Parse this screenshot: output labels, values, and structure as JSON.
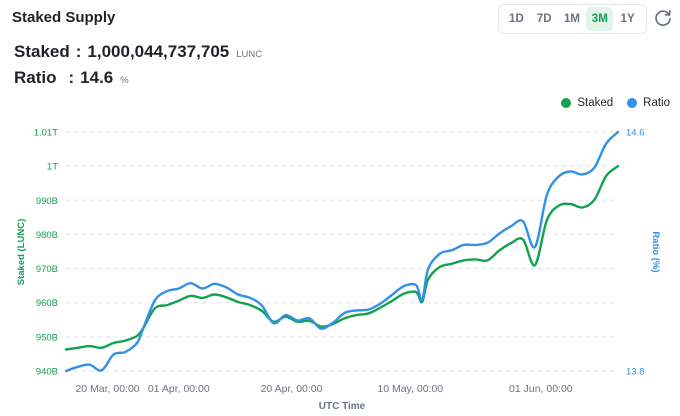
{
  "header": {
    "title": "Staked Supply",
    "ranges": [
      "1D",
      "7D",
      "1M",
      "3M",
      "1Y"
    ],
    "active_range": "3M"
  },
  "stats": {
    "staked_label": "Staked",
    "staked_value": "1,000,044,737,705",
    "staked_unit": "LUNC",
    "ratio_label": "Ratio",
    "ratio_value": "14.6",
    "ratio_unit": "%"
  },
  "colors": {
    "staked": "#12a150",
    "ratio": "#3290e8",
    "grid": "#dfe3e8",
    "active_bg": "#e3f4ea"
  },
  "chart_data": {
    "type": "line",
    "xlabel": "UTC Time",
    "ylabel_left": "Staked (LUNC)",
    "ylabel_right": "Ratio (%)",
    "legend": [
      "Staked",
      "Ratio"
    ],
    "legend_position": "top-right",
    "grid": "horizontal-dashed",
    "x_ticks": [
      "20 Mar, 00:00",
      "01 Apr, 00:00",
      "20 Apr, 00:00",
      "10 May, 00:00",
      "01 Jun, 00:00"
    ],
    "x_tick_dates": [
      "2023-03-20",
      "2023-04-01",
      "2023-04-20",
      "2023-05-10",
      "2023-06-01"
    ],
    "y_left_ticks": [
      "940B",
      "950B",
      "960B",
      "970B",
      "980B",
      "990B",
      "1T",
      "1.01T"
    ],
    "y_left_tick_values": [
      940,
      950,
      960,
      970,
      980,
      990,
      1000,
      1010
    ],
    "y_left_range": [
      940,
      1010
    ],
    "y_left_unit": "billion LUNC",
    "y_right_ticks": [
      "13.8",
      "14.6"
    ],
    "y_right_range": [
      13.8,
      14.6
    ],
    "series": [
      {
        "name": "Staked",
        "axis": "left",
        "color": "#12a150",
        "points": [
          [
            "2023-03-13",
            946.3
          ],
          [
            "2023-03-15",
            946.8
          ],
          [
            "2023-03-17",
            947.3
          ],
          [
            "2023-03-19",
            946.8
          ],
          [
            "2023-03-21",
            948.2
          ],
          [
            "2023-03-23",
            948.9
          ],
          [
            "2023-03-25",
            950.3
          ],
          [
            "2023-03-26",
            952.5
          ],
          [
            "2023-03-28",
            958.4
          ],
          [
            "2023-03-30",
            959.3
          ],
          [
            "2023-04-01",
            960.6
          ],
          [
            "2023-04-03",
            962.0
          ],
          [
            "2023-04-05",
            961.4
          ],
          [
            "2023-04-07",
            962.4
          ],
          [
            "2023-04-09",
            961.6
          ],
          [
            "2023-04-11",
            960.2
          ],
          [
            "2023-04-13",
            959.3
          ],
          [
            "2023-04-15",
            957.6
          ],
          [
            "2023-04-17",
            954.4
          ],
          [
            "2023-04-19",
            955.9
          ],
          [
            "2023-04-21",
            954.4
          ],
          [
            "2023-04-23",
            954.7
          ],
          [
            "2023-04-25",
            953.0
          ],
          [
            "2023-04-27",
            953.8
          ],
          [
            "2023-04-29",
            955.5
          ],
          [
            "2023-05-01",
            956.4
          ],
          [
            "2023-05-03",
            956.9
          ],
          [
            "2023-05-05",
            958.6
          ],
          [
            "2023-05-07",
            960.6
          ],
          [
            "2023-05-09",
            962.7
          ],
          [
            "2023-05-11",
            963.1
          ],
          [
            "2023-05-12",
            960.2
          ],
          [
            "2023-05-13",
            966.8
          ],
          [
            "2023-05-15",
            970.5
          ],
          [
            "2023-05-17",
            971.4
          ],
          [
            "2023-05-19",
            972.4
          ],
          [
            "2023-05-21",
            972.7
          ],
          [
            "2023-05-23",
            972.4
          ],
          [
            "2023-05-25",
            975.3
          ],
          [
            "2023-05-27",
            977.5
          ],
          [
            "2023-05-29",
            978.5
          ],
          [
            "2023-05-31",
            971.0
          ],
          [
            "2023-06-02",
            984.1
          ],
          [
            "2023-06-04",
            988.4
          ],
          [
            "2023-06-06",
            988.9
          ],
          [
            "2023-06-08",
            987.9
          ],
          [
            "2023-06-10",
            990.1
          ],
          [
            "2023-06-12",
            997.1
          ],
          [
            "2023-06-14",
            1000.0
          ]
        ]
      },
      {
        "name": "Ratio",
        "axis": "right",
        "color": "#3290e8",
        "points": [
          [
            "2023-03-13",
            13.8
          ],
          [
            "2023-03-15",
            13.814
          ],
          [
            "2023-03-17",
            13.821
          ],
          [
            "2023-03-19",
            13.802
          ],
          [
            "2023-03-21",
            13.855
          ],
          [
            "2023-03-23",
            13.864
          ],
          [
            "2023-03-25",
            13.895
          ],
          [
            "2023-03-26",
            13.942
          ],
          [
            "2023-03-28",
            14.037
          ],
          [
            "2023-03-30",
            14.067
          ],
          [
            "2023-04-01",
            14.076
          ],
          [
            "2023-04-03",
            14.094
          ],
          [
            "2023-04-05",
            14.076
          ],
          [
            "2023-04-07",
            14.092
          ],
          [
            "2023-04-09",
            14.08
          ],
          [
            "2023-04-11",
            14.056
          ],
          [
            "2023-04-13",
            14.045
          ],
          [
            "2023-04-15",
            14.019
          ],
          [
            "2023-04-17",
            13.96
          ],
          [
            "2023-04-19",
            13.987
          ],
          [
            "2023-04-21",
            13.969
          ],
          [
            "2023-04-23",
            13.976
          ],
          [
            "2023-04-25",
            13.942
          ],
          [
            "2023-04-27",
            13.962
          ],
          [
            "2023-04-29",
            13.995
          ],
          [
            "2023-05-01",
            14.003
          ],
          [
            "2023-05-03",
            14.006
          ],
          [
            "2023-05-05",
            14.026
          ],
          [
            "2023-05-07",
            14.056
          ],
          [
            "2023-05-09",
            14.085
          ],
          [
            "2023-05-11",
            14.087
          ],
          [
            "2023-05-12",
            14.037
          ],
          [
            "2023-05-13",
            14.141
          ],
          [
            "2023-05-15",
            14.193
          ],
          [
            "2023-05-17",
            14.204
          ],
          [
            "2023-05-19",
            14.222
          ],
          [
            "2023-05-21",
            14.222
          ],
          [
            "2023-05-23",
            14.229
          ],
          [
            "2023-05-25",
            14.26
          ],
          [
            "2023-05-27",
            14.285
          ],
          [
            "2023-05-29",
            14.301
          ],
          [
            "2023-05-31",
            14.215
          ],
          [
            "2023-06-02",
            14.388
          ],
          [
            "2023-06-04",
            14.451
          ],
          [
            "2023-06-06",
            14.468
          ],
          [
            "2023-06-08",
            14.458
          ],
          [
            "2023-06-10",
            14.481
          ],
          [
            "2023-06-12",
            14.561
          ],
          [
            "2023-06-14",
            14.6
          ]
        ]
      }
    ]
  }
}
